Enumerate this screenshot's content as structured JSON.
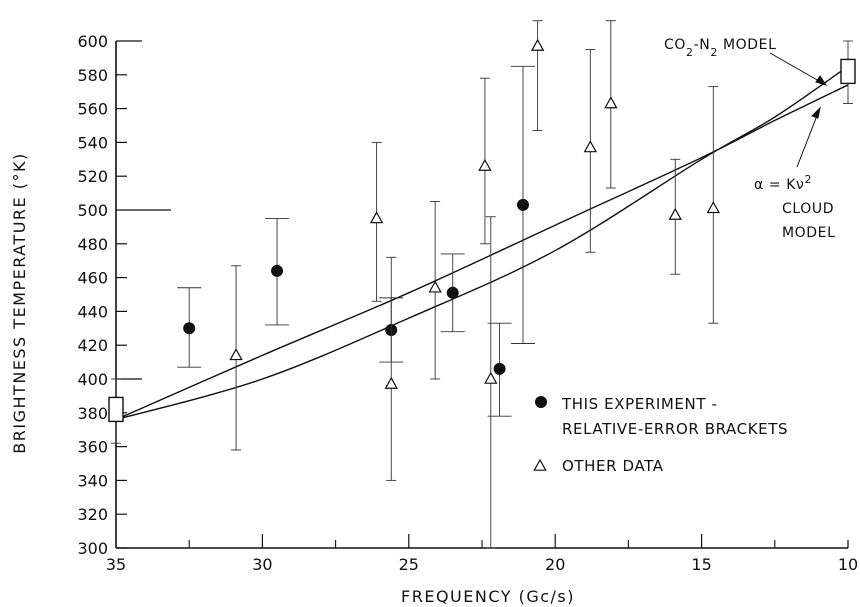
{
  "chart_data": {
    "type": "scatter",
    "xlabel": "FREQUENCY (Gc/s)",
    "ylabel": "BRIGHTNESS TEMPERATURE (°K)",
    "xlim": [
      35,
      10
    ],
    "ylim": [
      300,
      600
    ],
    "x_reversed": true,
    "x_ticks": [
      35,
      30,
      25,
      20,
      15,
      10
    ],
    "x_minor_ticks": [
      32.5,
      27.5,
      22.5,
      17.5,
      12.5
    ],
    "y_ticks": [
      300,
      320,
      340,
      360,
      380,
      400,
      420,
      440,
      460,
      480,
      500,
      520,
      540,
      560,
      580,
      600
    ],
    "y_long_ticks": [
      400,
      500,
      600
    ],
    "grid": false,
    "legend": {
      "placement": "bottom-right",
      "entries": [
        {
          "marker": "filled-circle",
          "label_lines": [
            "THIS EXPERIMENT -",
            "RELATIVE-ERROR BRACKETS"
          ]
        },
        {
          "marker": "open-triangle",
          "label_lines": [
            "OTHER DATA"
          ]
        }
      ]
    },
    "series": [
      {
        "marker": "filled-circle",
        "points": [
          {
            "x": 32.5,
            "y": 430,
            "low": 407,
            "high": 454
          },
          {
            "x": 29.5,
            "y": 464,
            "low": 432,
            "high": 495
          },
          {
            "x": 25.6,
            "y": 429,
            "low": 410,
            "high": 448
          },
          {
            "x": 23.5,
            "y": 451,
            "low": 428,
            "high": 474
          },
          {
            "x": 21.9,
            "y": 406,
            "low": 378,
            "high": 433
          },
          {
            "x": 21.1,
            "y": 503,
            "low": 421,
            "high": 585
          }
        ]
      },
      {
        "marker": "open-triangle",
        "points": [
          {
            "x": 30.9,
            "y": 414,
            "low": 358,
            "high": 467
          },
          {
            "x": 26.1,
            "y": 495,
            "low": 446,
            "high": 540
          },
          {
            "x": 25.6,
            "y": 397,
            "low": 340,
            "high": 472
          },
          {
            "x": 24.1,
            "y": 454,
            "low": 400,
            "high": 505
          },
          {
            "x": 22.4,
            "y": 526,
            "low": 480,
            "high": 578
          },
          {
            "x": 22.2,
            "y": 400,
            "low": 300,
            "high": 496
          },
          {
            "x": 20.6,
            "y": 597,
            "low": 547,
            "high": 612
          },
          {
            "x": 18.8,
            "y": 537,
            "low": 475,
            "high": 595
          },
          {
            "x": 18.1,
            "y": 563,
            "low": 513,
            "high": 612
          },
          {
            "x": 15.9,
            "y": 497,
            "low": 462,
            "high": 530
          },
          {
            "x": 14.6,
            "y": 501,
            "low": 433,
            "high": 573
          }
        ]
      },
      {
        "marker": "open-square",
        "points": [
          {
            "x": 35,
            "y": 382,
            "low": 362,
            "high": 400
          },
          {
            "x": 10,
            "y": 582,
            "low": 563,
            "high": 600
          }
        ]
      }
    ],
    "curves": [
      {
        "label_lines": [
          "CO",
          "2",
          "-N",
          "2",
          " MODEL"
        ],
        "points": [
          [
            35,
            376
          ],
          [
            30,
            414
          ],
          [
            25,
            451
          ],
          [
            20,
            491
          ],
          [
            15,
            531
          ],
          [
            12.5,
            553
          ],
          [
            10,
            574
          ]
        ]
      },
      {
        "label_lines": [
          "α = Kν",
          "2",
          "CLOUD",
          "MODEL"
        ],
        "points": [
          [
            35,
            376
          ],
          [
            30,
            400
          ],
          [
            25,
            436
          ],
          [
            20,
            476
          ],
          [
            15,
            530
          ],
          [
            12.5,
            555
          ],
          [
            10,
            585
          ]
        ]
      }
    ]
  }
}
